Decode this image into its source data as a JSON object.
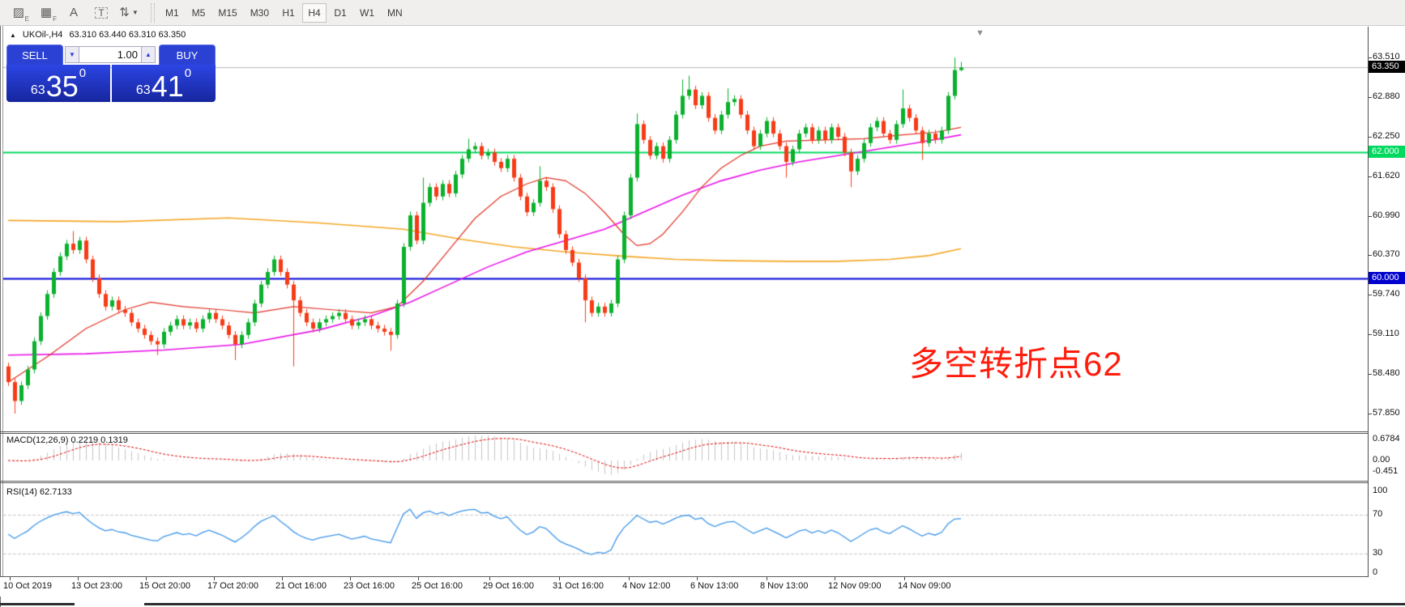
{
  "header": {
    "symbol_period": "UKOil-,H4",
    "ohlc": "63.310 63.440 63.310 63.350"
  },
  "toolbar": {
    "tools": [
      {
        "name": "hatch-tool-icon",
        "glyph": "▨",
        "sub": "E"
      },
      {
        "name": "fibonacci-grid-tool-icon",
        "glyph": "▦",
        "sub": "F"
      },
      {
        "name": "text-tool-icon",
        "glyph": "A",
        "sub": ""
      },
      {
        "name": "text-label-tool-icon",
        "glyph": "T",
        "sub": "",
        "dashed": true
      },
      {
        "name": "arrow-tools-icon",
        "glyph": "⇅",
        "sub": "",
        "caret": true
      }
    ],
    "timeframes": [
      "M1",
      "M5",
      "M15",
      "M30",
      "H1",
      "H4",
      "D1",
      "W1",
      "MN"
    ],
    "active_timeframe": "H4"
  },
  "trade_panel": {
    "sell_label": "SELL",
    "buy_label": "BUY",
    "volume": "1.00",
    "spin_down": "▼",
    "spin_up": "▲",
    "sell_price": {
      "prefix": "63",
      "main": "35",
      "sup": "0"
    },
    "buy_price": {
      "prefix": "63",
      "main": "41",
      "sup": "0"
    }
  },
  "annotation": {
    "text": "多空转折点62",
    "color": "#ff1d0e"
  },
  "price_axis": {
    "ticks": [
      "63.510",
      "62.880",
      "62.250",
      "61.620",
      "60.990",
      "60.370",
      "59.740",
      "59.110",
      "58.480",
      "57.850"
    ],
    "tick_values": [
      63.51,
      62.88,
      62.25,
      61.62,
      60.99,
      60.37,
      59.74,
      59.11,
      58.48,
      57.85
    ],
    "badges": [
      {
        "label": "63.350",
        "value": 63.35,
        "type": "current"
      },
      {
        "label": "62.000",
        "value": 62.0,
        "type": "green"
      },
      {
        "label": "60.000",
        "value": 60.0,
        "type": "blue"
      }
    ]
  },
  "indicators": {
    "macd": {
      "label": "MACD(12,26,9) 0.2219 0.1319",
      "fast": 12,
      "slow": 26,
      "smoothing": 9,
      "axis_labels": [
        "0.6784",
        "0.00",
        "-0.451"
      ],
      "current": "0.2219",
      "current_signal": "0.1319"
    },
    "rsi": {
      "label": "RSI(14) 62.7133",
      "period": 14,
      "levels": [
        70,
        30
      ],
      "axis_labels": [
        "100",
        "70",
        "30",
        "0"
      ],
      "current": "62.7133"
    }
  },
  "time_axis": {
    "labels": [
      "10 Oct 2019",
      "13 Oct 23:00",
      "15 Oct 20:00",
      "17 Oct 20:00",
      "21 Oct 16:00",
      "23 Oct 16:00",
      "25 Oct 16:00",
      "29 Oct 16:00",
      "31 Oct 16:00",
      "4 Nov 12:00",
      "6 Nov 13:00",
      "8 Nov 13:00",
      "12 Nov 09:00",
      "14 Nov 09:00"
    ]
  },
  "colors": {
    "candle_up": "#0ab12c",
    "candle_down": "#f73b17",
    "ma_orange": "#f5a623",
    "ma_magenta": "#e812e8",
    "ma_red": "#e03224",
    "hline_green": "#00d95f",
    "hline_blue": "#0000d8",
    "current_price_line": "#b8b8b8",
    "macd_hist": "#c4c4c4",
    "macd_signal": "#e00000",
    "rsi_line": "#3d95e8",
    "rsi_levels": "#c8c8c8"
  },
  "chart_data": {
    "type": "candlestick",
    "symbol": "UKOil-",
    "timeframe": "H4",
    "current_bar": {
      "open": 63.31,
      "high": 63.44,
      "low": 63.31,
      "close": 63.35
    },
    "first_open": 58.6,
    "closes": [
      58.35,
      58.05,
      58.3,
      58.55,
      59.0,
      59.4,
      59.75,
      60.1,
      60.35,
      60.55,
      60.45,
      60.6,
      60.3,
      60.0,
      59.75,
      59.55,
      59.65,
      59.5,
      59.45,
      59.3,
      59.2,
      59.1,
      59.0,
      58.95,
      59.15,
      59.25,
      59.35,
      59.25,
      59.3,
      59.2,
      59.35,
      59.45,
      59.35,
      59.25,
      59.1,
      58.95,
      59.1,
      59.3,
      59.6,
      59.9,
      60.1,
      60.3,
      60.1,
      59.9,
      59.65,
      59.45,
      59.3,
      59.2,
      59.3,
      59.35,
      59.4,
      59.45,
      59.35,
      59.25,
      59.3,
      59.35,
      59.25,
      59.2,
      59.15,
      59.1,
      59.6,
      60.5,
      61.0,
      60.6,
      61.2,
      61.45,
      61.3,
      61.5,
      61.35,
      61.65,
      61.9,
      62.05,
      62.1,
      61.95,
      62.0,
      61.85,
      61.75,
      61.9,
      61.6,
      61.3,
      61.05,
      61.2,
      61.55,
      61.45,
      61.1,
      60.7,
      60.45,
      60.25,
      60.0,
      59.65,
      59.45,
      59.55,
      59.45,
      59.6,
      60.3,
      61.0,
      61.6,
      62.45,
      62.2,
      61.95,
      62.1,
      61.9,
      62.2,
      62.6,
      62.9,
      63.0,
      62.75,
      62.9,
      62.55,
      62.35,
      62.6,
      62.8,
      62.85,
      62.6,
      62.35,
      62.1,
      62.3,
      62.5,
      62.3,
      62.1,
      61.85,
      62.05,
      62.3,
      62.4,
      62.2,
      62.35,
      62.2,
      62.4,
      62.25,
      62.0,
      61.7,
      61.9,
      62.15,
      62.4,
      62.5,
      62.3,
      62.2,
      62.45,
      62.7,
      62.55,
      62.35,
      62.15,
      62.3,
      62.2,
      62.35,
      62.9,
      63.31,
      63.35
    ],
    "wick_overrides": {
      "1": [
        null,
        57.85
      ],
      "10": [
        60.75,
        null
      ],
      "23": [
        null,
        58.78
      ],
      "35": [
        null,
        58.7
      ],
      "44": [
        null,
        58.6
      ],
      "59": [
        null,
        58.85
      ],
      "64": [
        61.6,
        null
      ],
      "71": [
        62.22,
        null
      ],
      "82": [
        61.78,
        null
      ],
      "89": [
        null,
        59.3
      ],
      "97": [
        62.62,
        null
      ],
      "104": [
        63.16,
        null
      ],
      "105": [
        63.22,
        null
      ],
      "111": [
        63.02,
        null
      ],
      "120": [
        null,
        61.6
      ],
      "130": [
        null,
        61.45
      ],
      "138": [
        63.0,
        null
      ],
      "141": [
        null,
        61.88
      ],
      "146": [
        63.51,
        null
      ],
      "147": [
        63.44,
        63.29
      ]
    },
    "hlines": [
      {
        "price": 63.35,
        "label": "63.350",
        "role": "current-price-line"
      },
      {
        "price": 62.0,
        "label": "62.000",
        "role": "green-horizontal-line"
      },
      {
        "price": 60.0,
        "label": "60.000",
        "role": "blue-horizontal-line"
      }
    ],
    "ma_orange": [
      [
        0,
        60.92
      ],
      [
        17,
        60.9
      ],
      [
        34,
        60.96
      ],
      [
        48,
        60.88
      ],
      [
        61,
        60.78
      ],
      [
        70,
        60.62
      ],
      [
        78,
        60.5
      ],
      [
        86,
        60.42
      ],
      [
        95,
        60.35
      ],
      [
        103,
        60.3
      ],
      [
        111,
        60.28
      ],
      [
        120,
        60.27
      ],
      [
        128,
        60.27
      ],
      [
        136,
        60.3
      ],
      [
        142,
        60.36
      ],
      [
        147,
        60.47
      ]
    ],
    "ma_magenta": [
      [
        0,
        58.78
      ],
      [
        12,
        58.8
      ],
      [
        24,
        58.86
      ],
      [
        36,
        58.95
      ],
      [
        48,
        59.18
      ],
      [
        56,
        59.4
      ],
      [
        62,
        59.62
      ],
      [
        68,
        59.9
      ],
      [
        74,
        60.18
      ],
      [
        80,
        60.42
      ],
      [
        86,
        60.6
      ],
      [
        92,
        60.78
      ],
      [
        98,
        61.05
      ],
      [
        104,
        61.32
      ],
      [
        110,
        61.55
      ],
      [
        116,
        61.72
      ],
      [
        122,
        61.85
      ],
      [
        128,
        61.95
      ],
      [
        134,
        62.05
      ],
      [
        140,
        62.15
      ],
      [
        147,
        62.28
      ]
    ],
    "ma_red": [
      [
        0,
        58.35
      ],
      [
        6,
        58.75
      ],
      [
        12,
        59.2
      ],
      [
        18,
        59.5
      ],
      [
        22,
        59.62
      ],
      [
        27,
        59.55
      ],
      [
        33,
        59.5
      ],
      [
        38,
        59.45
      ],
      [
        44,
        59.55
      ],
      [
        50,
        59.5
      ],
      [
        56,
        59.45
      ],
      [
        60,
        59.55
      ],
      [
        64,
        59.95
      ],
      [
        68,
        60.45
      ],
      [
        72,
        60.95
      ],
      [
        76,
        61.3
      ],
      [
        80,
        61.5
      ],
      [
        83,
        61.6
      ],
      [
        86,
        61.55
      ],
      [
        89,
        61.35
      ],
      [
        92,
        61.05
      ],
      [
        95,
        60.7
      ],
      [
        97,
        60.52
      ],
      [
        99,
        60.55
      ],
      [
        101,
        60.7
      ],
      [
        104,
        61.05
      ],
      [
        107,
        61.45
      ],
      [
        110,
        61.75
      ],
      [
        113,
        61.95
      ],
      [
        116,
        62.1
      ],
      [
        120,
        62.18
      ],
      [
        126,
        62.2
      ],
      [
        132,
        62.22
      ],
      [
        138,
        62.28
      ],
      [
        143,
        62.32
      ],
      [
        147,
        62.4
      ]
    ]
  }
}
